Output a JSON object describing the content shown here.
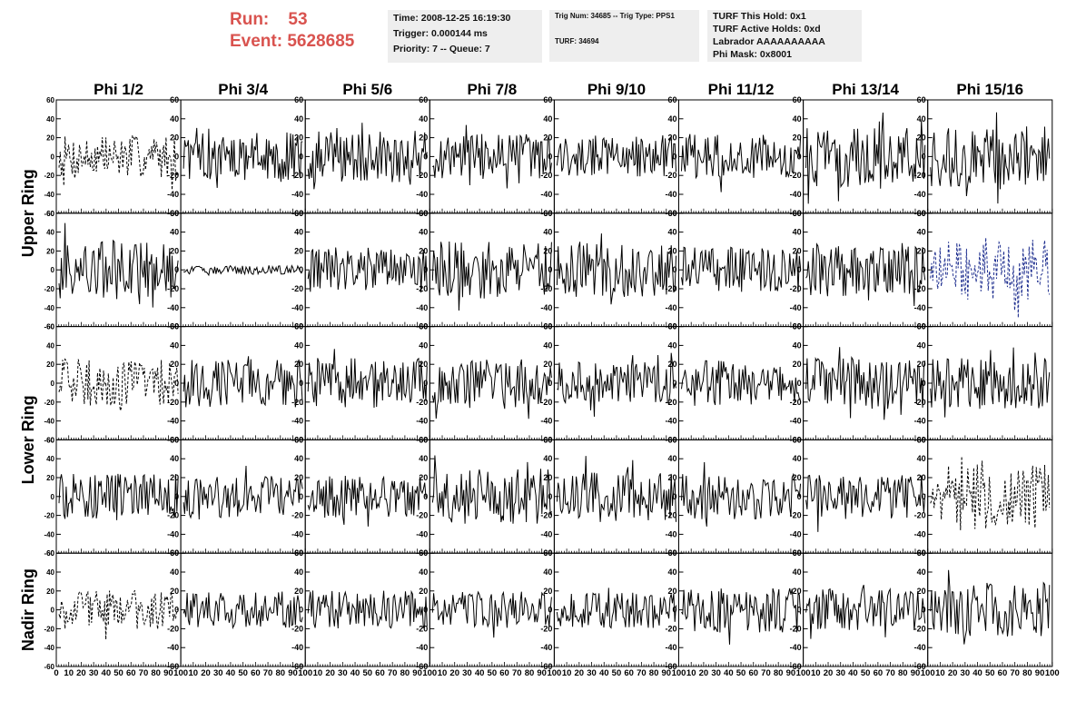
{
  "header": {
    "run_label": "Run:",
    "run_value": "53",
    "event_label": "Event:",
    "event_value": "5628685",
    "time_info": [
      "Time: 2008-12-25 16:19:30",
      "Trigger: 0.000144 ms",
      "Priority: 7 -- Queue: 7"
    ],
    "trig_info": [
      "Trig Num: 34685 -- Trig Type: PPS1",
      "",
      "TURF: 34694"
    ],
    "turf_info": [
      "TURF This Hold: 0x1",
      "TURF Active Holds: 0xd",
      "Labrador AAAAAAAAAA",
      "Phi Mask: 0x8001"
    ]
  },
  "colors": {
    "header_red": "#d9534f",
    "info_bg": "#eeeeee",
    "trace_black": "#000000",
    "trace_blue": "#1f2f8f"
  },
  "chart_data": {
    "type": "line",
    "columns": [
      "Phi 1/2",
      "Phi 3/4",
      "Phi 5/6",
      "Phi 7/8",
      "Phi 9/10",
      "Phi 11/12",
      "Phi 13/14",
      "Phi 15/16"
    ],
    "rings": [
      "Upper Ring",
      "Lower Ring",
      "Nadir Ring"
    ],
    "row_ring_group": [
      0,
      0,
      1,
      1,
      2
    ],
    "ylim": [
      -60,
      60
    ],
    "yticks": [
      -60,
      -40,
      -20,
      0,
      20,
      40,
      60
    ],
    "xlim": [
      0,
      100
    ],
    "xtick_labels": [
      "0",
      "10",
      "20",
      "30",
      "40",
      "50",
      "60",
      "70",
      "80",
      "90",
      "100"
    ],
    "samples": 100,
    "grid": false,
    "panels": [
      [
        {
          "amp": 14,
          "style": "dashed",
          "color": "#000000"
        },
        {
          "amp": 16,
          "style": "solid",
          "color": "#000000"
        },
        {
          "amp": 17,
          "style": "solid",
          "color": "#000000"
        },
        {
          "amp": 15,
          "style": "solid",
          "color": "#000000"
        },
        {
          "amp": 14,
          "style": "solid",
          "color": "#000000"
        },
        {
          "amp": 15,
          "style": "solid",
          "color": "#000000"
        },
        {
          "amp": 20,
          "style": "solid",
          "color": "#000000"
        },
        {
          "amp": 20,
          "style": "solid",
          "color": "#000000"
        }
      ],
      [
        {
          "amp": 20,
          "style": "solid",
          "color": "#000000"
        },
        {
          "amp": 3,
          "style": "solid",
          "color": "#000000"
        },
        {
          "amp": 15,
          "style": "solid",
          "color": "#000000"
        },
        {
          "amp": 19,
          "style": "solid",
          "color": "#000000"
        },
        {
          "amp": 18,
          "style": "solid",
          "color": "#000000"
        },
        {
          "amp": 15,
          "style": "solid",
          "color": "#000000"
        },
        {
          "amp": 18,
          "style": "solid",
          "color": "#000000"
        },
        {
          "amp": 20,
          "style": "dashed",
          "color": "#1f2f8f"
        }
      ],
      [
        {
          "amp": 16,
          "style": "dashed",
          "color": "#000000"
        },
        {
          "amp": 16,
          "style": "solid",
          "color": "#000000"
        },
        {
          "amp": 17,
          "style": "solid",
          "color": "#000000"
        },
        {
          "amp": 17,
          "style": "solid",
          "color": "#000000"
        },
        {
          "amp": 14,
          "style": "solid",
          "color": "#000000"
        },
        {
          "amp": 15,
          "style": "solid",
          "color": "#000000"
        },
        {
          "amp": 17,
          "style": "solid",
          "color": "#000000"
        },
        {
          "amp": 17,
          "style": "solid",
          "color": "#000000"
        }
      ],
      [
        {
          "amp": 15,
          "style": "solid",
          "color": "#000000"
        },
        {
          "amp": 14,
          "style": "solid",
          "color": "#000000"
        },
        {
          "amp": 14,
          "style": "solid",
          "color": "#000000"
        },
        {
          "amp": 18,
          "style": "solid",
          "color": "#000000"
        },
        {
          "amp": 17,
          "style": "solid",
          "color": "#000000"
        },
        {
          "amp": 15,
          "style": "solid",
          "color": "#000000"
        },
        {
          "amp": 15,
          "style": "solid",
          "color": "#000000"
        },
        {
          "amp": 22,
          "style": "dashed",
          "color": "#000000"
        }
      ],
      [
        {
          "amp": 13,
          "style": "dashed",
          "color": "#000000"
        },
        {
          "amp": 12,
          "style": "solid",
          "color": "#000000"
        },
        {
          "amp": 13,
          "style": "solid",
          "color": "#000000"
        },
        {
          "amp": 12,
          "style": "solid",
          "color": "#000000"
        },
        {
          "amp": 12,
          "style": "solid",
          "color": "#000000"
        },
        {
          "amp": 15,
          "style": "solid",
          "color": "#000000"
        },
        {
          "amp": 14,
          "style": "solid",
          "color": "#000000"
        },
        {
          "amp": 18,
          "style": "solid",
          "color": "#000000"
        }
      ]
    ]
  }
}
